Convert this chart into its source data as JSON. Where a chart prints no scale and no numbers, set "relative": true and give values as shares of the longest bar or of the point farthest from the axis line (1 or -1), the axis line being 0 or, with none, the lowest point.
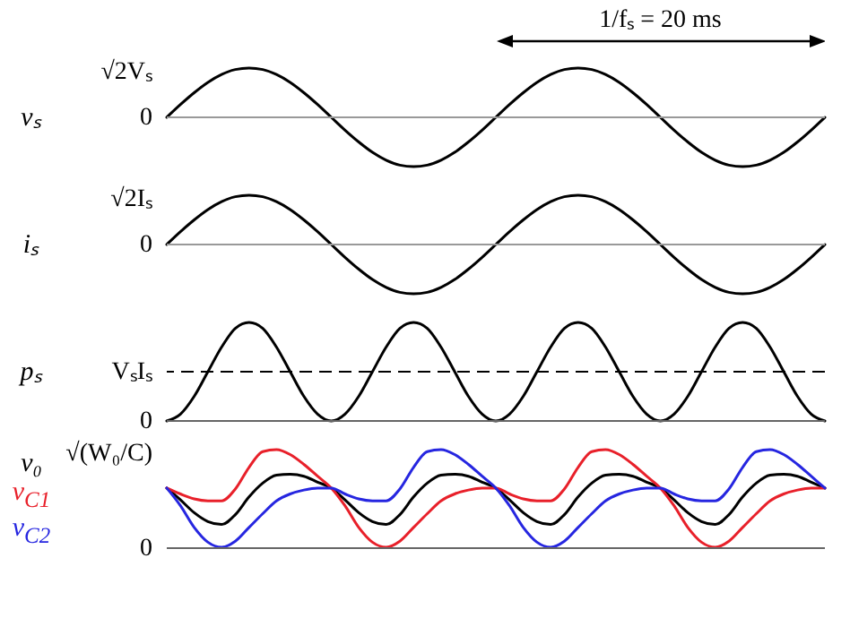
{
  "chart_data": [
    {
      "type": "line",
      "relative": true,
      "ylabel": "vₛ",
      "annotations": [
        "1/fₛ = 20 ms",
        "√2Vₛ"
      ],
      "categories": [
        null,
        null,
        null,
        null,
        null,
        null,
        null,
        null,
        null,
        null,
        null,
        null,
        null,
        null,
        null,
        null,
        null,
        null,
        null,
        null,
        null,
        null,
        null,
        null,
        null,
        null,
        null,
        null,
        null,
        null,
        null,
        null,
        null,
        null,
        null,
        null,
        null,
        null,
        null,
        null,
        null,
        null,
        null,
        null,
        null,
        null,
        null,
        null,
        null
      ],
      "series": [
        {
          "color": "#000000",
          "values": [
            0,
            0.26,
            0.5,
            0.71,
            0.87,
            0.97,
            1,
            0.97,
            0.87,
            0.71,
            0.5,
            0.26,
            0,
            -0.26,
            -0.5,
            -0.71,
            -0.87,
            -0.97,
            -1,
            -0.97,
            -0.87,
            -0.71,
            -0.5,
            -0.26,
            0,
            0.26,
            0.5,
            0.71,
            0.87,
            0.97,
            1,
            0.97,
            0.87,
            0.71,
            0.5,
            0.26,
            0,
            -0.26,
            -0.5,
            -0.71,
            -0.87,
            -0.97,
            -1,
            -0.97,
            -0.87,
            -0.71,
            -0.5,
            -0.26,
            0
          ]
        }
      ],
      "ref_lines": [
        {
          "axis": "y",
          "value": 0,
          "color": "#999999",
          "label": "0"
        }
      ]
    },
    {
      "type": "line",
      "relative": true,
      "ylabel": "iₛ",
      "annotations": [
        "√2Iₛ"
      ],
      "categories": [
        null,
        null,
        null,
        null,
        null,
        null,
        null,
        null,
        null,
        null,
        null,
        null,
        null,
        null,
        null,
        null,
        null,
        null,
        null,
        null,
        null,
        null,
        null,
        null,
        null,
        null,
        null,
        null,
        null,
        null,
        null,
        null,
        null,
        null,
        null,
        null,
        null,
        null,
        null,
        null,
        null,
        null,
        null,
        null,
        null,
        null,
        null,
        null,
        null
      ],
      "series": [
        {
          "color": "#000000",
          "values": [
            0,
            0.26,
            0.5,
            0.71,
            0.87,
            0.97,
            1,
            0.97,
            0.87,
            0.71,
            0.5,
            0.26,
            0,
            -0.26,
            -0.5,
            -0.71,
            -0.87,
            -0.97,
            -1,
            -0.97,
            -0.87,
            -0.71,
            -0.5,
            -0.26,
            0,
            0.26,
            0.5,
            0.71,
            0.87,
            0.97,
            1,
            0.97,
            0.87,
            0.71,
            0.5,
            0.26,
            0,
            -0.26,
            -0.5,
            -0.71,
            -0.87,
            -0.97,
            -1,
            -0.97,
            -0.87,
            -0.71,
            -0.5,
            -0.26,
            0
          ]
        }
      ],
      "ref_lines": [
        {
          "axis": "y",
          "value": 0,
          "color": "#999999",
          "label": "0"
        }
      ]
    },
    {
      "type": "line",
      "relative": true,
      "ylabel": "pₛ",
      "categories": [
        null,
        null,
        null,
        null,
        null,
        null,
        null,
        null,
        null,
        null,
        null,
        null,
        null,
        null,
        null,
        null,
        null,
        null,
        null,
        null,
        null,
        null,
        null,
        null,
        null,
        null,
        null,
        null,
        null,
        null,
        null,
        null,
        null,
        null,
        null,
        null,
        null,
        null,
        null,
        null,
        null,
        null,
        null,
        null,
        null,
        null,
        null,
        null,
        null
      ],
      "series": [
        {
          "color": "#000000",
          "values": [
            0,
            0.07,
            0.25,
            0.5,
            0.75,
            0.94,
            1,
            0.94,
            0.75,
            0.5,
            0.25,
            0.07,
            0,
            0.07,
            0.25,
            0.5,
            0.75,
            0.94,
            1,
            0.94,
            0.75,
            0.5,
            0.25,
            0.07,
            0,
            0.07,
            0.25,
            0.5,
            0.75,
            0.94,
            1,
            0.94,
            0.75,
            0.5,
            0.25,
            0.07,
            0,
            0.07,
            0.25,
            0.5,
            0.75,
            0.94,
            1,
            0.94,
            0.75,
            0.5,
            0.25,
            0.07,
            0
          ]
        }
      ],
      "ref_lines": [
        {
          "axis": "y",
          "value": 0,
          "color": "#666666",
          "label": "0"
        },
        {
          "axis": "y",
          "value": 0.5,
          "color": "#000000",
          "line_style": "dashed",
          "label": "VₛIₛ"
        }
      ]
    },
    {
      "type": "line",
      "relative": true,
      "annotations": [
        "√(W₀/C)"
      ],
      "categories": [
        null,
        null,
        null,
        null,
        null,
        null,
        null,
        null,
        null,
        null,
        null,
        null,
        null,
        null,
        null,
        null,
        null,
        null,
        null,
        null,
        null,
        null,
        null,
        null,
        null,
        null,
        null,
        null,
        null,
        null,
        null,
        null,
        null,
        null,
        null,
        null,
        null,
        null,
        null,
        null,
        null,
        null,
        null,
        null,
        null,
        null,
        null,
        null,
        null
      ],
      "series": [
        {
          "name": "v₀",
          "color": "#000000",
          "values": [
            0.61,
            0.49,
            0.36,
            0.27,
            0.24,
            0.34,
            0.52,
            0.66,
            0.74,
            0.75,
            0.73,
            0.67,
            0.61,
            0.49,
            0.36,
            0.27,
            0.24,
            0.34,
            0.52,
            0.66,
            0.74,
            0.75,
            0.73,
            0.67,
            0.61,
            0.49,
            0.36,
            0.27,
            0.24,
            0.34,
            0.52,
            0.66,
            0.74,
            0.75,
            0.73,
            0.67,
            0.61,
            0.49,
            0.36,
            0.27,
            0.24,
            0.34,
            0.52,
            0.66,
            0.74,
            0.75,
            0.73,
            0.67,
            0.61
          ]
        },
        {
          "name": "v$_{C1}$",
          "color": "#e8202a",
          "values": [
            0.61,
            0.55,
            0.5,
            0.48,
            0.48,
            0.6,
            0.82,
            0.98,
            1,
            0.95,
            0.85,
            0.73,
            0.61,
            0.43,
            0.21,
            0.06,
            0.01,
            0.07,
            0.21,
            0.35,
            0.48,
            0.55,
            0.59,
            0.61,
            0.61,
            0.55,
            0.5,
            0.48,
            0.48,
            0.6,
            0.82,
            0.98,
            1,
            0.95,
            0.85,
            0.73,
            0.61,
            0.43,
            0.21,
            0.06,
            0.01,
            0.07,
            0.21,
            0.35,
            0.48,
            0.55,
            0.59,
            0.61,
            0.61
          ]
        },
        {
          "name": "v$_{C2}$",
          "color": "#2626e0",
          "values": [
            0.61,
            0.43,
            0.21,
            0.06,
            0.01,
            0.07,
            0.21,
            0.35,
            0.48,
            0.55,
            0.59,
            0.61,
            0.61,
            0.55,
            0.5,
            0.48,
            0.48,
            0.6,
            0.82,
            0.98,
            1,
            0.95,
            0.85,
            0.73,
            0.61,
            0.43,
            0.21,
            0.06,
            0.01,
            0.07,
            0.21,
            0.35,
            0.48,
            0.55,
            0.59,
            0.61,
            0.61,
            0.55,
            0.5,
            0.48,
            0.48,
            0.6,
            0.82,
            0.98,
            1,
            0.95,
            0.85,
            0.73,
            0.61
          ]
        }
      ],
      "ref_lines": [
        {
          "axis": "y",
          "value": 0,
          "color": "#666666",
          "label": "0"
        }
      ]
    }
  ]
}
